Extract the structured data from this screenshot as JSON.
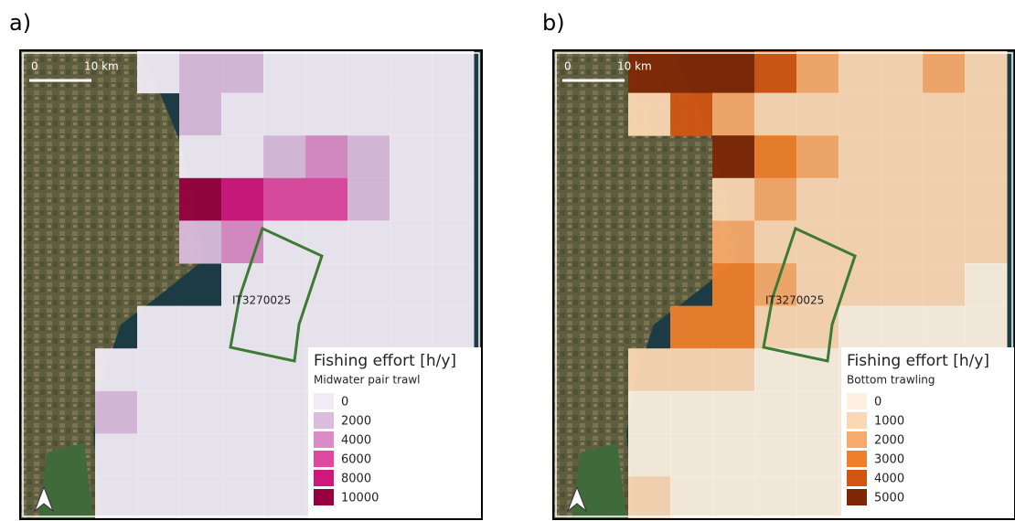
{
  "panels": [
    {
      "label": "a)",
      "scale": {
        "zero": "0",
        "distance": "10 km"
      },
      "site": "IT3270025",
      "legend": {
        "title": "Fishing effort [h/y]",
        "subtitle": "Midwater pair trawl",
        "entries": [
          {
            "value": 0,
            "color": "#f1ebf4"
          },
          {
            "value": 2000,
            "color": "#dbbcdd"
          },
          {
            "value": 4000,
            "color": "#db8cc6"
          },
          {
            "value": 6000,
            "color": "#df4aa0"
          },
          {
            "value": 8000,
            "color": "#cf177c"
          },
          {
            "value": 10000,
            "color": "#96003f"
          }
        ]
      }
    },
    {
      "label": "b)",
      "scale": {
        "zero": "0",
        "distance": "10 km"
      },
      "site": "IT3270025",
      "legend": {
        "title": "Fishing effort [h/y]",
        "subtitle": "Bottom trawling",
        "entries": [
          {
            "value": 0,
            "color": "#fdf0e2"
          },
          {
            "value": 1000,
            "color": "#fbd7b3"
          },
          {
            "value": 2000,
            "color": "#f8aa6c"
          },
          {
            "value": 3000,
            "color": "#ef7f2c"
          },
          {
            "value": 4000,
            "color": "#d25612"
          },
          {
            "value": 5000,
            "color": "#7e2705"
          }
        ]
      }
    }
  ]
}
